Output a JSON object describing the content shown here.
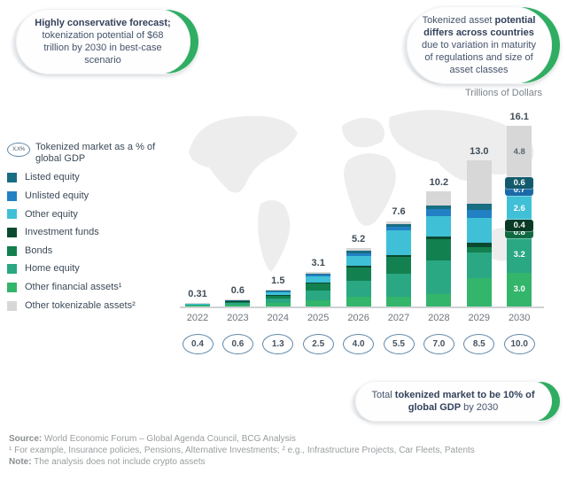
{
  "callouts": {
    "top_left": {
      "bold": "Highly conservative forecast;",
      "rest": " tokenization potential of $68 trillion by 2030 in best-case scenario"
    },
    "top_right": {
      "pre": "Tokenized asset ",
      "bold": "potential differs across countries",
      "rest": " due to variation in maturity of regulations and size of asset classes"
    },
    "bottom_right": {
      "pre": "Total ",
      "bold": "tokenized market to be 10% of global GDP",
      "rest": " by 2030"
    }
  },
  "axis_title": "Trillions of Dollars",
  "legend": {
    "gdp_item": {
      "icon_text": "X.X%",
      "label": "Tokenized market as a % of global GDP"
    },
    "items": [
      {
        "label": "Listed equity",
        "color": "#186e82"
      },
      {
        "label": "Unlisted equity",
        "color": "#2280c4"
      },
      {
        "label": "Other equity",
        "color": "#3fc0d6"
      },
      {
        "label": "Investment funds",
        "color": "#0b4a31"
      },
      {
        "label": "Bonds",
        "color": "#13804f"
      },
      {
        "label": "Home equity",
        "color": "#2aa783"
      },
      {
        "label": "Other financial assets¹",
        "color": "#33b56b"
      },
      {
        "label": "Other tokenizable assets²",
        "color": "#d7d7d7"
      }
    ]
  },
  "chart_data": {
    "type": "bar",
    "stacked": true,
    "title": "",
    "xlabel": "",
    "ylabel": "Trillions of Dollars",
    "grid": false,
    "legend_position": "left",
    "categories": [
      "2022",
      "2023",
      "2024",
      "2025",
      "2026",
      "2027",
      "2028",
      "2029",
      "2030"
    ],
    "totals": [
      0.31,
      0.6,
      1.5,
      3.1,
      5.2,
      7.6,
      10.2,
      13.0,
      16.1
    ],
    "totals_display": [
      "0.31",
      "0.6",
      "1.5",
      "3.1",
      "5.2",
      "7.6",
      "10.2",
      "13.0",
      "16.1"
    ],
    "gdp_share_pct": [
      "0.4",
      "0.6",
      "1.3",
      "2.5",
      "4.0",
      "5.5",
      "7.0",
      "8.5",
      "10.0"
    ],
    "note": "Only 2030 segment values are labeled in the figure; earlier-year segment values are visual estimates. 2030 labeled segments: Other financial assets 3.0, Home equity 3.2, Bonds 0.8, Investment funds 0.4, Other equity 2.6, Unlisted equity 0.7, Listed equity 0.6, Other tokenizable assets 4.8.",
    "series": [
      {
        "name": "Other financial assets¹",
        "color": "#33b56b",
        "values": [
          0.08,
          0.14,
          0.3,
          0.55,
          0.85,
          0.9,
          1.1,
          2.5,
          3.0
        ],
        "label_2030": "3.0",
        "chip": false
      },
      {
        "name": "Home equity",
        "color": "#2aa783",
        "values": [
          0.1,
          0.18,
          0.4,
          0.85,
          1.4,
          2.0,
          3.0,
          2.3,
          3.2
        ],
        "label_2030": "3.2",
        "chip": false
      },
      {
        "name": "Bonds",
        "color": "#13804f",
        "values": [
          0.05,
          0.1,
          0.3,
          0.65,
          1.2,
          1.5,
          1.9,
          0.45,
          0.8
        ],
        "label_2030": "0.8",
        "chip": true,
        "chip_color": "#0f6a41"
      },
      {
        "name": "Investment funds",
        "color": "#0b4a31",
        "values": [
          0.01,
          0.02,
          0.05,
          0.1,
          0.15,
          0.2,
          0.25,
          0.4,
          0.4
        ],
        "label_2030": "0.4",
        "chip": true,
        "chip_color": "#083a26"
      },
      {
        "name": "Other equity",
        "color": "#3fc0d6",
        "values": [
          0.03,
          0.08,
          0.25,
          0.55,
          0.9,
          2.2,
          1.8,
          2.2,
          2.6
        ],
        "label_2030": "2.6",
        "chip": false
      },
      {
        "name": "Unlisted equity",
        "color": "#2280c4",
        "values": [
          0.01,
          0.02,
          0.06,
          0.15,
          0.25,
          0.3,
          0.6,
          0.7,
          0.7
        ],
        "label_2030": "0.7",
        "chip": true,
        "chip_color": "#1b6aa8"
      },
      {
        "name": "Listed equity",
        "color": "#186e82",
        "values": [
          0.01,
          0.02,
          0.04,
          0.1,
          0.2,
          0.25,
          0.35,
          0.55,
          0.6
        ],
        "label_2030": "0.6",
        "chip": true,
        "chip_color": "#135b6c"
      },
      {
        "name": "Other tokenizable assets²",
        "color": "#d7d7d7",
        "values": [
          0.02,
          0.04,
          0.1,
          0.15,
          0.25,
          0.25,
          1.2,
          3.9,
          4.8
        ],
        "label_2030": "4.8",
        "chip": false,
        "label_dark": true
      }
    ]
  },
  "footer": {
    "source_label": "Source:",
    "source_text": " World Economic Forum – Global Agenda Council, BCG Analysis",
    "footnote": "¹ For example, Insurance policies, Pensions, Alternative Investments; ² e.g., Infrastructure Projects, Car Fleets, Patents",
    "note_label": "Note:",
    "note_text": " The analysis does not include crypto assets"
  }
}
